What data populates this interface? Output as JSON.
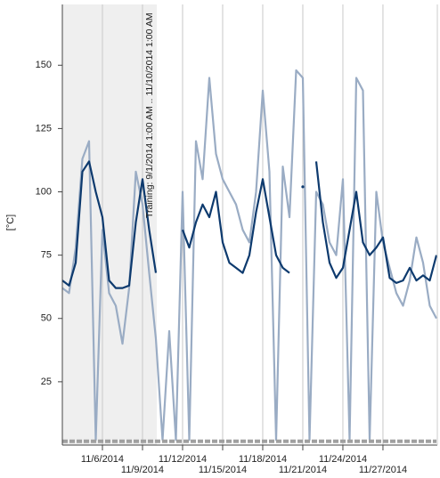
{
  "chart_data": {
    "type": "line",
    "y_label": "[°C]",
    "annotation": "Training: 9/1/2014 1:00 AM .. 11/10/2014 1:00 AM",
    "shaded_region": [
      3,
      10.07
    ],
    "x": [
      3,
      3.5,
      4,
      4.5,
      5,
      5.5,
      6,
      6.5,
      7,
      7.5,
      8,
      8.5,
      9,
      9.5,
      10,
      10.5,
      11,
      11.5,
      12,
      12.5,
      13,
      13.5,
      14,
      14.5,
      15,
      15.5,
      16,
      16.5,
      17,
      17.5,
      18,
      18.5,
      19,
      19.5,
      20,
      20.5,
      21,
      21.5,
      22,
      22.5,
      23,
      23.5,
      24,
      24.5,
      25,
      25.5,
      26,
      26.5,
      27,
      27.5,
      28,
      28.5,
      29,
      29.5,
      30,
      30.5,
      31
    ],
    "series": [
      {
        "color": "#9aacc4",
        "values": [
          62,
          60,
          78,
          113,
          120,
          2,
          85,
          60,
          55,
          40,
          62,
          108,
          95,
          68,
          42,
          2,
          45,
          2,
          100,
          2,
          120,
          105,
          145,
          115,
          105,
          100,
          95,
          85,
          80,
          100,
          140,
          108,
          2,
          110,
          90,
          148,
          145,
          2,
          100,
          95,
          80,
          75,
          105,
          2,
          145,
          140,
          2,
          100,
          80,
          70,
          60,
          55,
          65,
          82,
          72,
          55,
          50
        ]
      },
      {
        "color": "#0d3a6e",
        "values": [
          65,
          63,
          72,
          108,
          112,
          100,
          90,
          65,
          62,
          62,
          63,
          88,
          105,
          85,
          68,
          null,
          null,
          null,
          85,
          78,
          88,
          95,
          90,
          100,
          80,
          72,
          70,
          68,
          75,
          92,
          105,
          90,
          75,
          70,
          68,
          null,
          102,
          null,
          112,
          88,
          72,
          66,
          70,
          85,
          100,
          80,
          75,
          78,
          82,
          66,
          64,
          65,
          70,
          65,
          67,
          65,
          75
        ]
      },
      {
        "color": "#a0a0a0",
        "style": "dashed",
        "values": [
          1.5,
          1.5,
          1.5,
          1.5,
          1.5,
          1.5,
          1.5,
          1.5,
          1.5,
          1.5,
          1.5,
          1.5,
          1.5,
          1.5,
          1.5,
          1.5,
          1.5,
          1.5,
          1.5,
          1.5,
          1.5,
          1.5,
          1.5,
          1.5,
          1.5,
          1.5,
          1.5,
          1.5,
          1.5,
          1.5,
          1.5,
          1.5,
          1.5,
          1.5,
          1.5,
          1.5,
          1.5,
          1.5,
          1.5,
          1.5,
          1.5,
          1.5,
          1.5,
          1.5,
          1.5,
          1.5,
          1.5,
          1.5,
          1.5,
          1.5,
          1.5,
          1.5,
          1.5,
          1.5,
          1.5,
          1.5,
          1.5
        ]
      }
    ],
    "xlim": [
      3,
      31.07
    ],
    "xticks": [
      {
        "value": 6,
        "label": "11/6/2014"
      },
      {
        "value": 9,
        "label": "11/9/2014"
      },
      {
        "value": 12,
        "label": "11/12/2014"
      },
      {
        "value": 15,
        "label": "11/15/2014"
      },
      {
        "value": 18,
        "label": "11/18/2014"
      },
      {
        "value": 21,
        "label": "11/21/2014"
      },
      {
        "value": 24,
        "label": "11/24/2014"
      },
      {
        "value": 27,
        "label": "11/27/2014"
      }
    ],
    "ylim": [
      0,
      174
    ],
    "yticks": [
      25,
      50,
      75,
      100,
      125,
      150
    ],
    "grid": "x"
  }
}
